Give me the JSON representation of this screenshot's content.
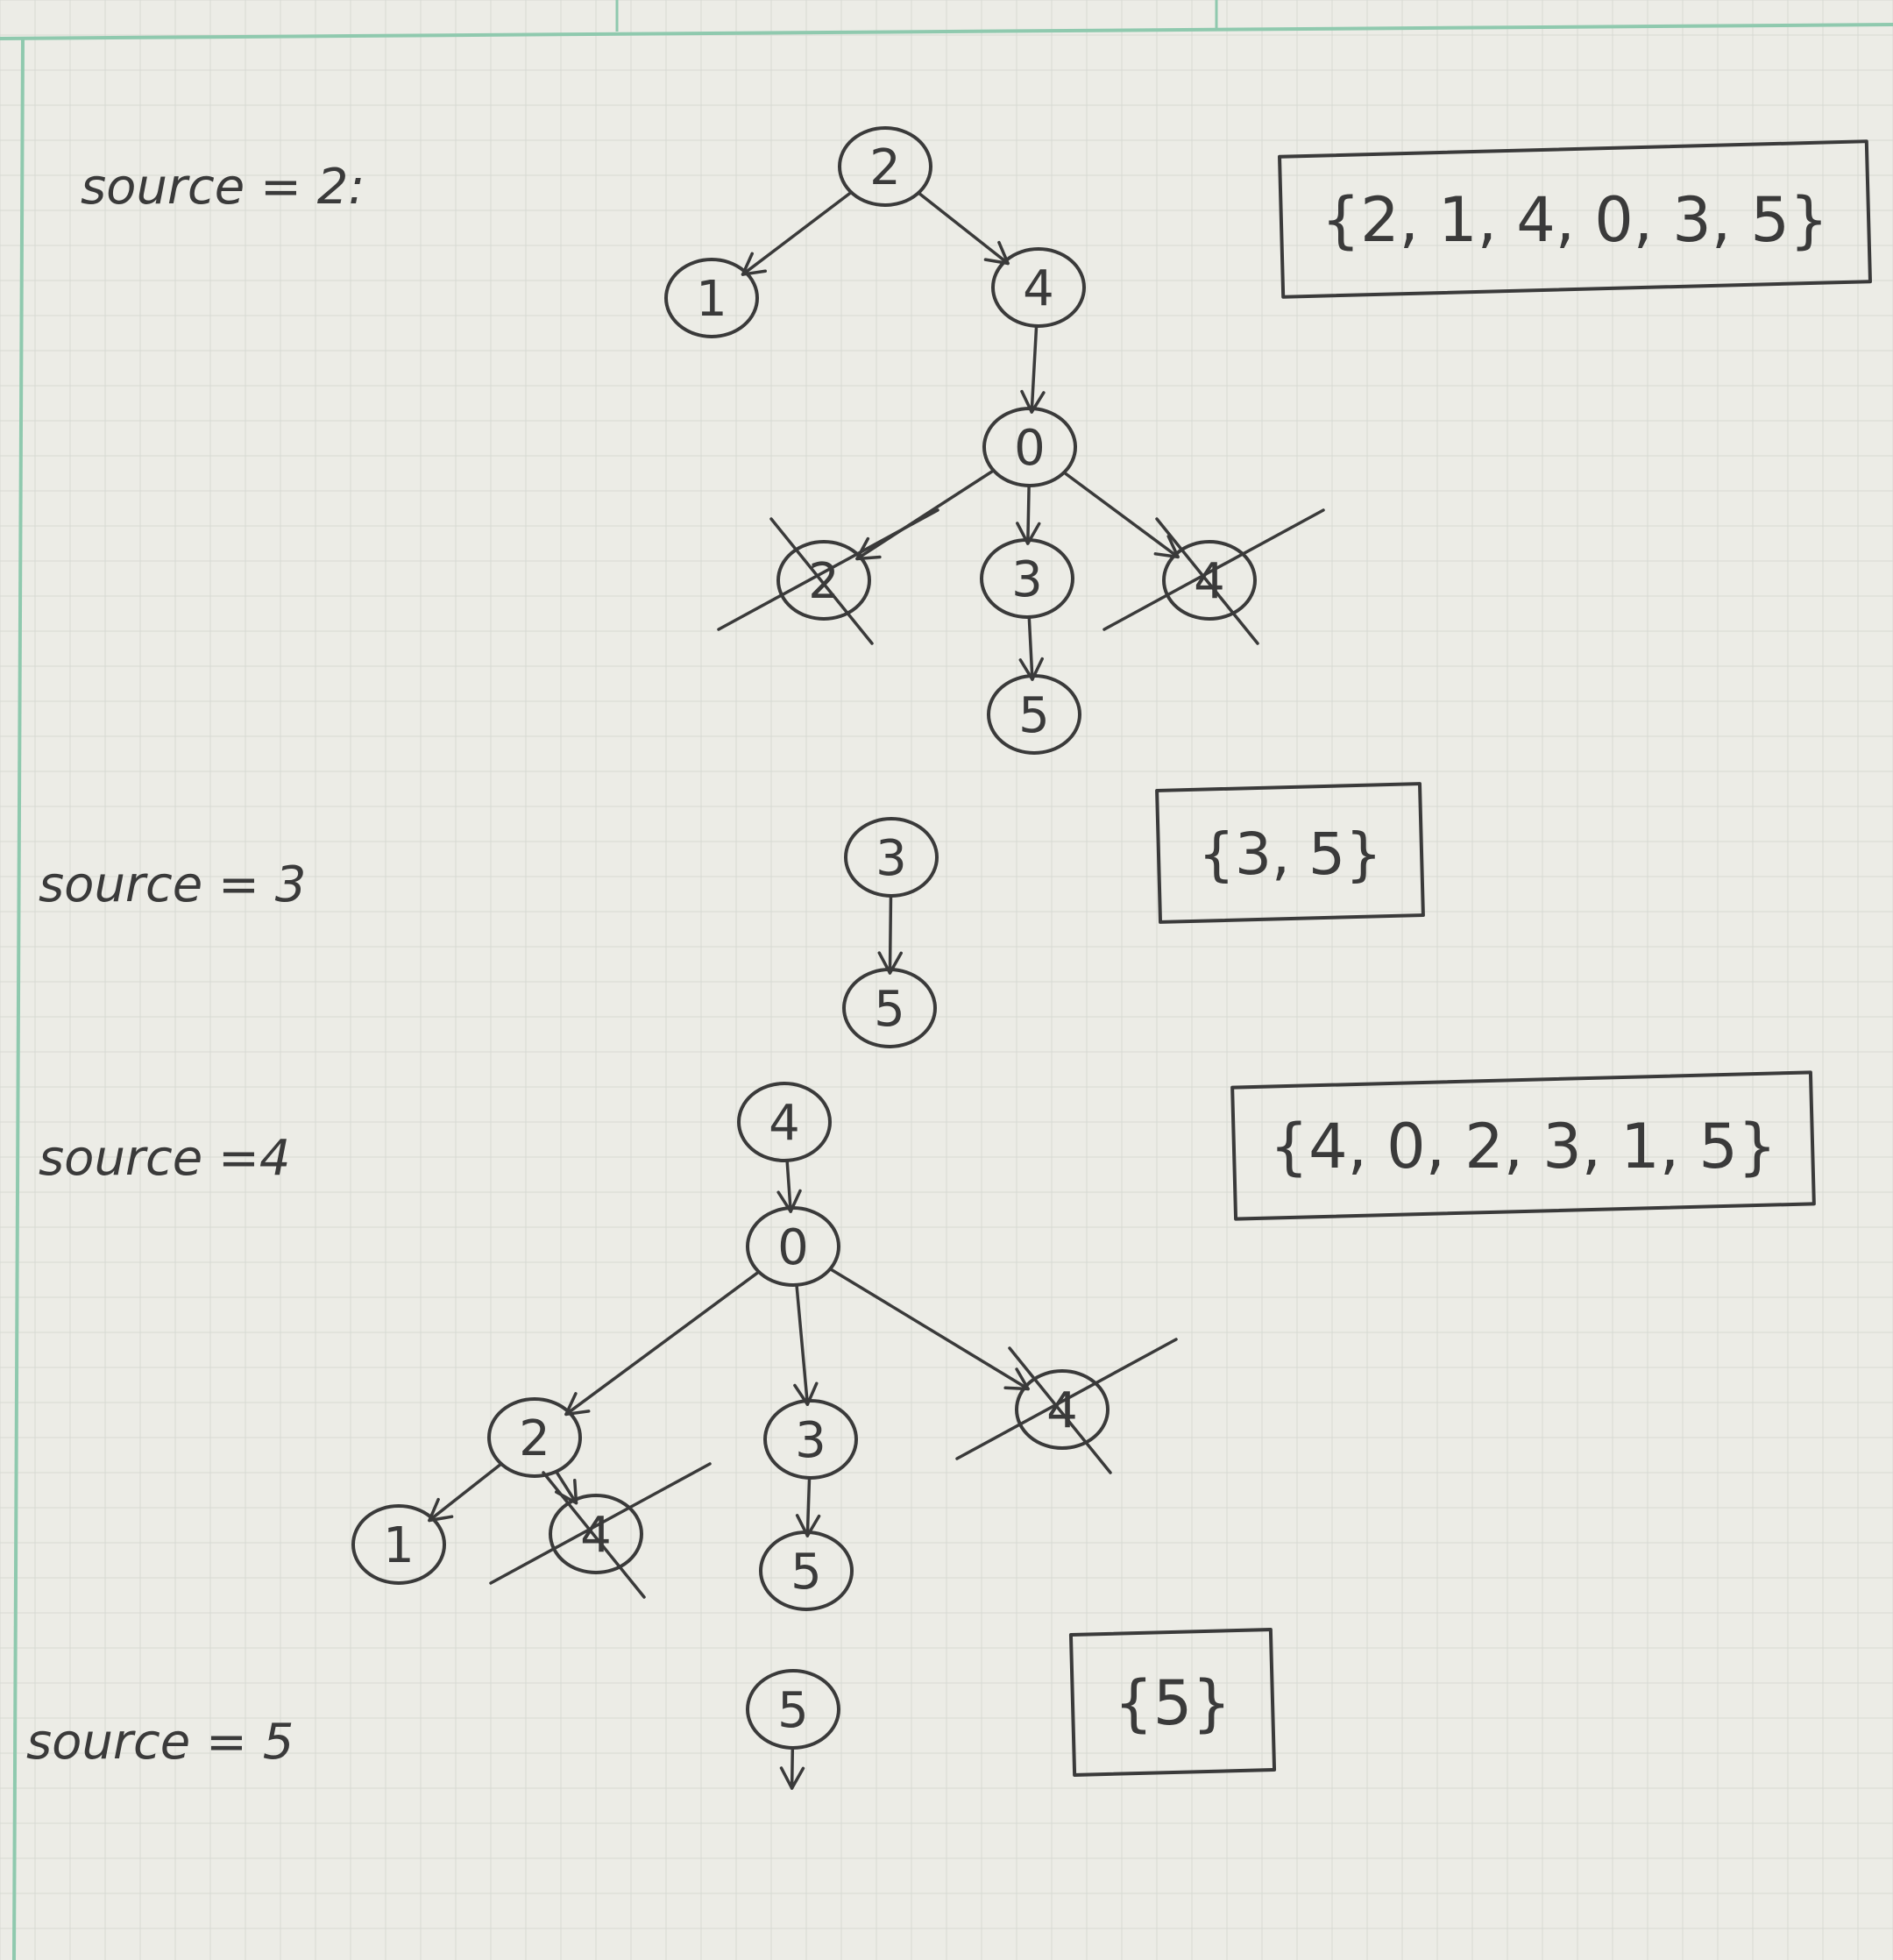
{
  "sections": [
    {
      "id": "s2",
      "label": "source = 2:",
      "result": "{2, 1, 4, 0, 3, 5}",
      "nodes": [
        {
          "id": "a2",
          "label": "2"
        },
        {
          "id": "a1",
          "label": "1"
        },
        {
          "id": "a4",
          "label": "4"
        },
        {
          "id": "a0",
          "label": "0"
        },
        {
          "id": "a2x",
          "label": "2",
          "crossed": true
        },
        {
          "id": "a3",
          "label": "3"
        },
        {
          "id": "a4x",
          "label": "4",
          "crossed": true
        },
        {
          "id": "a5",
          "label": "5"
        }
      ],
      "edges": [
        {
          "from": "a2",
          "to": "a1"
        },
        {
          "from": "a2",
          "to": "a4"
        },
        {
          "from": "a4",
          "to": "a0"
        },
        {
          "from": "a0",
          "to": "a2x"
        },
        {
          "from": "a0",
          "to": "a3"
        },
        {
          "from": "a0",
          "to": "a4x"
        },
        {
          "from": "a3",
          "to": "a5"
        }
      ]
    },
    {
      "id": "s3",
      "label": "source = 3",
      "result": "{3, 5}",
      "nodes": [
        {
          "id": "b3",
          "label": "3"
        },
        {
          "id": "b5",
          "label": "5"
        }
      ],
      "edges": [
        {
          "from": "b3",
          "to": "b5"
        }
      ]
    },
    {
      "id": "s4",
      "label": "source =4",
      "result": "{4, 0, 2, 3, 1, 5}",
      "nodes": [
        {
          "id": "c4",
          "label": "4"
        },
        {
          "id": "c0",
          "label": "0"
        },
        {
          "id": "c2",
          "label": "2"
        },
        {
          "id": "c3",
          "label": "3"
        },
        {
          "id": "c4x",
          "label": "4",
          "crossed": true
        },
        {
          "id": "c1",
          "label": "1"
        },
        {
          "id": "c4y",
          "label": "4",
          "crossed": true
        },
        {
          "id": "c5",
          "label": "5"
        }
      ],
      "edges": [
        {
          "from": "c4",
          "to": "c0"
        },
        {
          "from": "c0",
          "to": "c2"
        },
        {
          "from": "c0",
          "to": "c3"
        },
        {
          "from": "c0",
          "to": "c4x"
        },
        {
          "from": "c2",
          "to": "c1"
        },
        {
          "from": "c2",
          "to": "c4y"
        },
        {
          "from": "c3",
          "to": "c5"
        }
      ]
    },
    {
      "id": "s5",
      "label": "source = 5",
      "result": "{5}",
      "nodes": [
        {
          "id": "d5",
          "label": "5"
        }
      ],
      "edges": [
        {
          "from": "d5",
          "to": null
        }
      ]
    }
  ],
  "colors": {
    "paper": "#ecece6",
    "grid": "#d7dad3",
    "margin_line": "#8fc9ae",
    "pencil": "#3a3a3a"
  }
}
